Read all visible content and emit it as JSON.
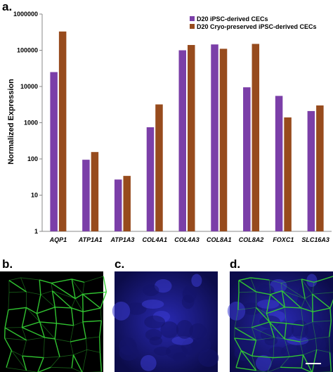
{
  "panel_labels": {
    "a": "a.",
    "b": "b.",
    "c": "c.",
    "d": "d."
  },
  "colors": {
    "series_1": "#7b3fa8",
    "series_2": "#974b1d",
    "micrograph_background": "#000000",
    "membrane_stain": "#33cc33",
    "nuclear_stain": "#1a1a8c"
  },
  "chart_data": {
    "type": "bar",
    "title": "",
    "xlabel": "",
    "ylabel": "Normalized Expression",
    "yscale": "log",
    "ylim": [
      1,
      1000000
    ],
    "yticks": [
      "1",
      "10",
      "100",
      "1000",
      "10000",
      "100000",
      "1000000"
    ],
    "grid": false,
    "legend_position": "top-right",
    "categories": [
      "AQP1",
      "ATP1A1",
      "ATP1A3",
      "COL4A1",
      "COL4A3",
      "COL8A1",
      "COL8A2",
      "FOXC1",
      "SLC16A3"
    ],
    "series": [
      {
        "name": "D20 iPSC-derived CECs",
        "values": [
          25000,
          95,
          27,
          750,
          100000,
          145000,
          9500,
          5500,
          2100
        ]
      },
      {
        "name": "D20 Cryo-preserved iPSC-derived CECs",
        "values": [
          330000,
          155,
          34,
          3200,
          140000,
          110000,
          150000,
          1400,
          3000
        ]
      }
    ]
  },
  "micrographs": [
    {
      "panel": "b",
      "channel": "membrane-stain"
    },
    {
      "panel": "c",
      "channel": "nuclear-stain"
    },
    {
      "panel": "d",
      "channel": "merged",
      "scale_bar": true
    }
  ]
}
